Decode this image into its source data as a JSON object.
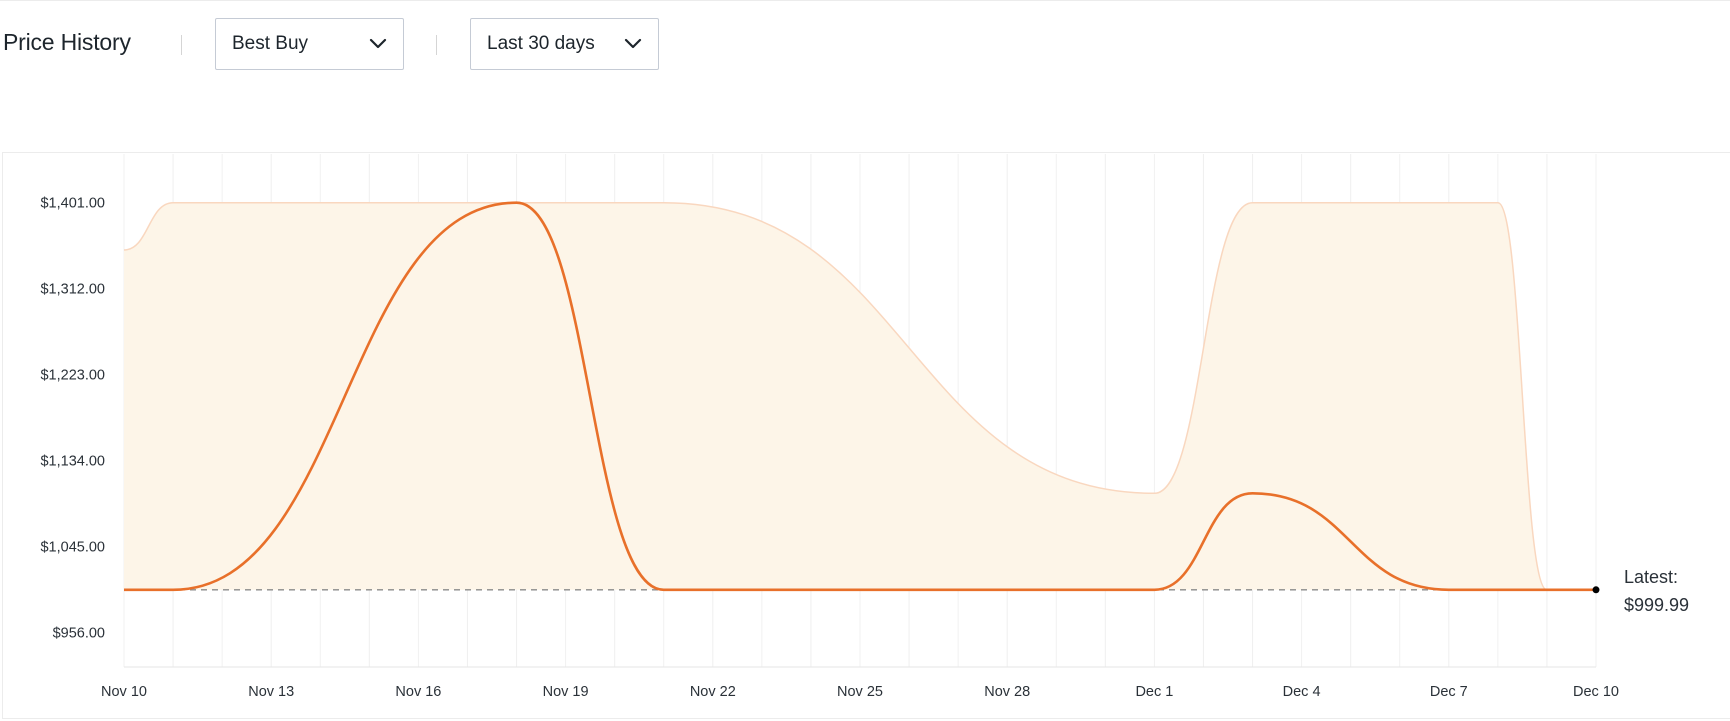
{
  "header": {
    "title": "Price History",
    "retailer_dropdown": {
      "selected": "Best Buy",
      "icon": "chevron-down-icon"
    },
    "range_dropdown": {
      "selected": "Last 30 days",
      "icon": "chevron-down-icon"
    }
  },
  "colors": {
    "line": "#e8702a",
    "band_fill": "#fdf5e8",
    "band_stroke": "#f9d7bf",
    "grid": "#f0f0f0",
    "latest_dot": "#000000"
  },
  "chart_data": {
    "type": "line",
    "title": "",
    "xlabel": "",
    "ylabel": "",
    "ylim": [
      920,
      1438
    ],
    "xlim": [
      "Nov 10",
      "Dec 10"
    ],
    "y_ticks": [
      "$1,401.00",
      "$1,312.00",
      "$1,223.00",
      "$1,134.00",
      "$1,045.00",
      "$956.00"
    ],
    "y_tick_values": [
      1401,
      1312,
      1223,
      1134,
      1045,
      956
    ],
    "x_ticks": [
      "Nov 10",
      "Nov 13",
      "Nov 16",
      "Nov 19",
      "Nov 22",
      "Nov 25",
      "Nov 28",
      "Dec 1",
      "Dec 4",
      "Dec 7",
      "Dec 10"
    ],
    "x_tick_days": [
      0,
      3,
      6,
      9,
      12,
      15,
      18,
      21,
      24,
      27,
      30
    ],
    "grid": "vertical",
    "series": [
      {
        "role": "price",
        "points": [
          [
            0,
            999.99
          ],
          [
            1,
            999.99
          ],
          [
            8,
            1401
          ],
          [
            11,
            999.99
          ],
          [
            21,
            999.99
          ],
          [
            23,
            1100
          ],
          [
            27,
            999.99
          ],
          [
            30,
            999.99
          ]
        ]
      }
    ],
    "band": {
      "upper": [
        [
          0,
          1352
        ],
        [
          1,
          1401
        ],
        [
          11,
          1401
        ],
        [
          21,
          1100
        ],
        [
          23,
          1401
        ],
        [
          28,
          1401
        ],
        [
          29,
          999.99
        ]
      ],
      "lower": 999.99
    },
    "reference_line": 999.99,
    "latest": {
      "label": "Latest:",
      "value": "$999.99",
      "x": 30,
      "y": 999.99
    }
  }
}
